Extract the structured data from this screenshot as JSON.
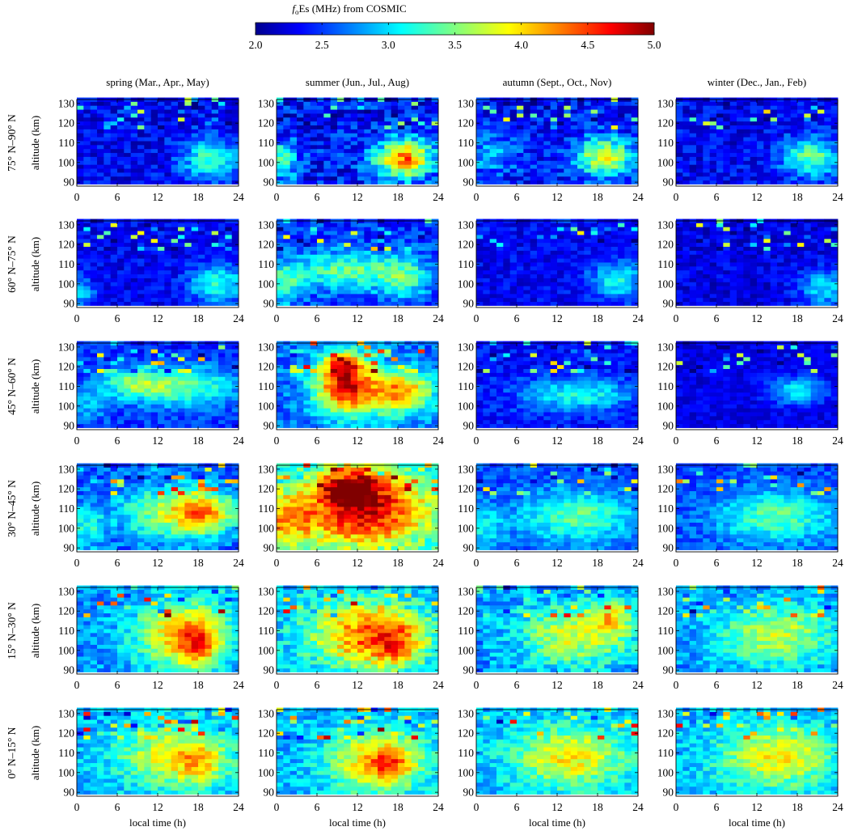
{
  "chart_data": {
    "type": "heatmap",
    "title_prefix_italic": "f",
    "title_subscript": "o",
    "title_rest": "Es (MHz) from COSMIC",
    "colorbar": {
      "min": 2.0,
      "max": 5.0,
      "ticks": [
        "2.0",
        "2.5",
        "3.0",
        "3.5",
        "4.0",
        "4.5",
        "5.0"
      ],
      "colormap": "jet"
    },
    "columns": [
      "spring (Mar., Apr., May)",
      "summer (Jun., Jul., Aug)",
      "autumn (Sept., Oct., Nov)",
      "winter (Dec., Jan., Feb)"
    ],
    "rows": [
      "75° N–90° N",
      "60° N–75° N",
      "45° N–60° N",
      "30° N–45° N",
      "15° N–30° N",
      "0° N–15° N"
    ],
    "xlabel": "local time (h)",
    "ylabel": "altitude (km)",
    "xlim": [
      0,
      24
    ],
    "ylim": [
      88,
      132
    ],
    "xticks": [
      0,
      6,
      12,
      18,
      24
    ],
    "yticks": [
      90,
      100,
      110,
      120,
      130
    ],
    "grid": {
      "time_bins": 24,
      "altitude_bins": 22,
      "time_step_h": 1,
      "altitude_step_km": 2
    },
    "panels": [
      [
        {
          "base": 2.35,
          "blobs": [
            {
              "t": 20,
              "z": 102,
              "st": 3,
              "sz": 7,
              "a": 1.0
            }
          ],
          "noise": 0.25
        },
        {
          "base": 2.4,
          "blobs": [
            {
              "t": 19,
              "z": 102,
              "st": 3,
              "sz": 7,
              "a": 1.9
            },
            {
              "t": 1,
              "z": 101,
              "st": 1.5,
              "sz": 7,
              "a": 1.0
            }
          ],
          "noise": 0.35
        },
        {
          "base": 2.4,
          "blobs": [
            {
              "t": 19,
              "z": 103,
              "st": 3,
              "sz": 7,
              "a": 1.4
            },
            {
              "t": 2,
              "z": 104,
              "st": 3,
              "sz": 7,
              "a": 0.5
            }
          ],
          "noise": 0.3
        },
        {
          "base": 2.35,
          "blobs": [
            {
              "t": 20,
              "z": 103,
              "st": 3,
              "sz": 7,
              "a": 1.1
            }
          ],
          "noise": 0.25
        }
      ],
      [
        {
          "base": 2.35,
          "blobs": [
            {
              "t": 21,
              "z": 100,
              "st": 3,
              "sz": 7,
              "a": 0.9
            },
            {
              "t": 0.5,
              "z": 96,
              "st": 1.5,
              "sz": 5,
              "a": 0.6
            }
          ],
          "noise": 0.2
        },
        {
          "base": 2.5,
          "blobs": [
            {
              "t": 10,
              "z": 107,
              "st": 5,
              "sz": 7,
              "a": 0.9
            },
            {
              "t": 19,
              "z": 104,
              "st": 3,
              "sz": 8,
              "a": 0.8
            },
            {
              "t": 1,
              "z": 100,
              "st": 2,
              "sz": 8,
              "a": 0.8
            }
          ],
          "noise": 0.25
        },
        {
          "base": 2.35,
          "blobs": [
            {
              "t": 21,
              "z": 102,
              "st": 3,
              "sz": 7,
              "a": 0.8
            }
          ],
          "noise": 0.2
        },
        {
          "base": 2.3,
          "blobs": [
            {
              "t": 22,
              "z": 98,
              "st": 2.5,
              "sz": 6,
              "a": 0.8
            }
          ],
          "noise": 0.2
        }
      ],
      [
        {
          "base": 2.5,
          "blobs": [
            {
              "t": 15,
              "z": 110,
              "st": 6,
              "sz": 7,
              "a": 1.0
            },
            {
              "t": 8,
              "z": 112,
              "st": 3,
              "sz": 5,
              "a": 0.6
            },
            {
              "t": 2,
              "z": 100,
              "st": 2,
              "sz": 6,
              "a": 0.4
            }
          ],
          "noise": 0.2
        },
        {
          "base": 2.7,
          "blobs": [
            {
              "t": 10,
              "z": 112,
              "st": 3,
              "sz": 10,
              "a": 1.6
            },
            {
              "t": 19,
              "z": 108,
              "st": 3,
              "sz": 7,
              "a": 1.1
            },
            {
              "t": 14,
              "z": 106,
              "st": 5,
              "sz": 9,
              "a": 0.7
            },
            {
              "t": 10,
              "z": 122,
              "st": 2,
              "sz": 4,
              "a": 1.0
            }
          ],
          "noise": 0.25
        },
        {
          "base": 2.4,
          "blobs": [
            {
              "t": 15,
              "z": 106,
              "st": 6,
              "sz": 6,
              "a": 0.8
            }
          ],
          "noise": 0.2
        },
        {
          "base": 2.3,
          "blobs": [
            {
              "t": 18,
              "z": 108,
              "st": 3,
              "sz": 5,
              "a": 0.8
            }
          ],
          "noise": 0.15
        }
      ],
      [
        {
          "base": 2.6,
          "blobs": [
            {
              "t": 15,
              "z": 108,
              "st": 6,
              "sz": 10,
              "a": 1.1
            },
            {
              "t": 19,
              "z": 108,
              "st": 3,
              "sz": 7,
              "a": 0.8
            },
            {
              "t": 1,
              "z": 100,
              "st": 2,
              "sz": 8,
              "a": 0.6
            }
          ],
          "noise": 0.25
        },
        {
          "base": 3.0,
          "blobs": [
            {
              "t": 13,
              "z": 110,
              "st": 7,
              "sz": 14,
              "a": 1.8
            },
            {
              "t": 11,
              "z": 122,
              "st": 3,
              "sz": 6,
              "a": 1.2
            },
            {
              "t": 1,
              "z": 104,
              "st": 3,
              "sz": 10,
              "a": 0.9
            }
          ],
          "noise": 0.3
        },
        {
          "base": 2.6,
          "blobs": [
            {
              "t": 15,
              "z": 106,
              "st": 6,
              "sz": 9,
              "a": 0.8
            },
            {
              "t": 1,
              "z": 100,
              "st": 2,
              "sz": 8,
              "a": 0.5
            }
          ],
          "noise": 0.2
        },
        {
          "base": 2.6,
          "blobs": [
            {
              "t": 15,
              "z": 106,
              "st": 6,
              "sz": 9,
              "a": 0.8
            }
          ],
          "noise": 0.2
        }
      ],
      [
        {
          "base": 2.8,
          "blobs": [
            {
              "t": 16,
              "z": 108,
              "st": 5,
              "sz": 12,
              "a": 1.3
            },
            {
              "t": 18,
              "z": 102,
              "st": 2,
              "sz": 8,
              "a": 0.7
            }
          ],
          "noise": 0.25
        },
        {
          "base": 2.9,
          "blobs": [
            {
              "t": 14,
              "z": 108,
              "st": 6,
              "sz": 12,
              "a": 1.5
            },
            {
              "t": 18,
              "z": 102,
              "st": 2,
              "sz": 7,
              "a": 0.6
            }
          ],
          "noise": 0.3
        },
        {
          "base": 2.8,
          "blobs": [
            {
              "t": 15,
              "z": 108,
              "st": 6,
              "sz": 11,
              "a": 1.0
            },
            {
              "t": 20,
              "z": 118,
              "st": 2,
              "sz": 6,
              "a": 0.8
            }
          ],
          "noise": 0.3
        },
        {
          "base": 2.8,
          "blobs": [
            {
              "t": 15,
              "z": 108,
              "st": 6,
              "sz": 11,
              "a": 0.9
            }
          ],
          "noise": 0.25
        }
      ],
      [
        {
          "base": 2.9,
          "blobs": [
            {
              "t": 15,
              "z": 108,
              "st": 6,
              "sz": 11,
              "a": 1.0
            },
            {
              "t": 18,
              "z": 104,
              "st": 2,
              "sz": 6,
              "a": 0.5
            }
          ],
          "noise": 0.25
        },
        {
          "base": 2.9,
          "blobs": [
            {
              "t": 15,
              "z": 106,
              "st": 5,
              "sz": 11,
              "a": 1.2
            },
            {
              "t": 17,
              "z": 104,
              "st": 2,
              "sz": 5,
              "a": 0.6
            }
          ],
          "noise": 0.25
        },
        {
          "base": 2.9,
          "blobs": [
            {
              "t": 14,
              "z": 108,
              "st": 6,
              "sz": 11,
              "a": 1.0
            }
          ],
          "noise": 0.25
        },
        {
          "base": 2.9,
          "blobs": [
            {
              "t": 15,
              "z": 108,
              "st": 6,
              "sz": 11,
              "a": 1.0
            }
          ],
          "noise": 0.25
        }
      ]
    ]
  }
}
